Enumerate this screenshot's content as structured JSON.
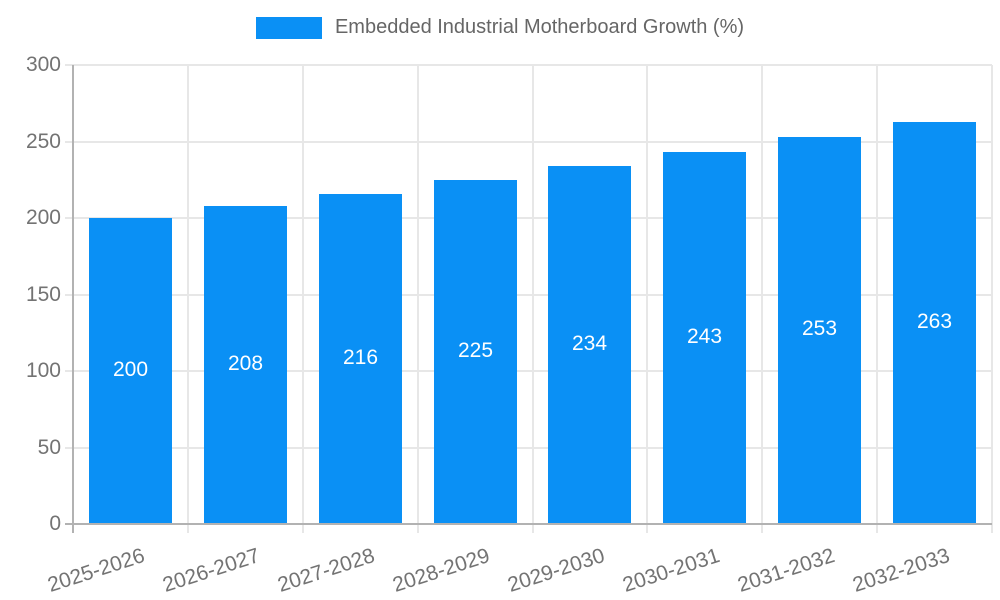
{
  "legend": {
    "label": "Embedded Industrial Motherboard Growth (%)"
  },
  "chart_data": {
    "type": "bar",
    "title": "Embedded Industrial Motherboard Growth (%)",
    "categories": [
      "2025-2026",
      "2026-2027",
      "2027-2028",
      "2028-2029",
      "2029-2030",
      "2030-2031",
      "2031-2032",
      "2032-2033"
    ],
    "values": [
      200,
      208,
      216,
      225,
      234,
      243,
      253,
      263
    ],
    "xlabel": "",
    "ylabel": "",
    "ylim": [
      0,
      300
    ],
    "ytick_step": 50,
    "yticks": [
      0,
      50,
      100,
      150,
      200,
      250,
      300
    ],
    "grid": true,
    "legend_position": "top",
    "value_labels": "inside-center",
    "colors": {
      "bar": "#0a90f5",
      "value_label": "#ffffff",
      "grid": "#e7e7e7",
      "axis": "#b2b2b2",
      "tick_label": "#737373",
      "legend_text": "#666666",
      "background": "#ffffff"
    }
  }
}
